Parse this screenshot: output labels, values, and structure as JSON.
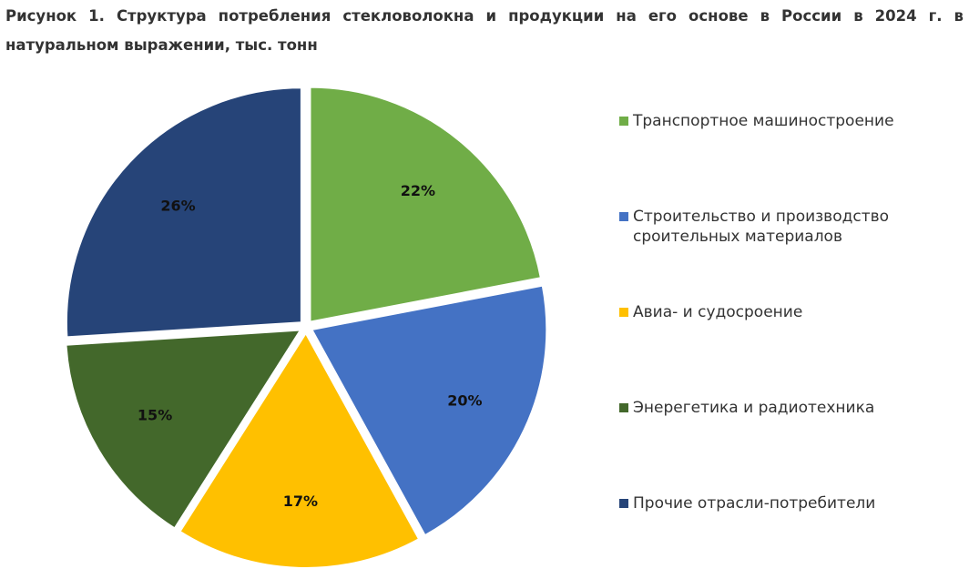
{
  "chart_data": {
    "type": "pie",
    "title": "Рисунок 1. Структура потребления стекловолокна и продукции на его основе в России в 2024 г. в натуральном выражении, тыс. тонн",
    "categories": [
      "Транспортное машиностроение",
      "Строительство и производство сроительных материалов",
      "Авиа- и судосроение",
      "Энерегетика и радиотехника",
      "Прочие отрасли-потребители"
    ],
    "values": [
      22,
      20,
      17,
      15,
      26
    ],
    "value_labels": [
      "22%",
      "20%",
      "17%",
      "15%",
      "26%"
    ],
    "colors": [
      "#70ad47",
      "#4472c4",
      "#ffc000",
      "#43682b",
      "#264478"
    ],
    "legend": "right"
  }
}
